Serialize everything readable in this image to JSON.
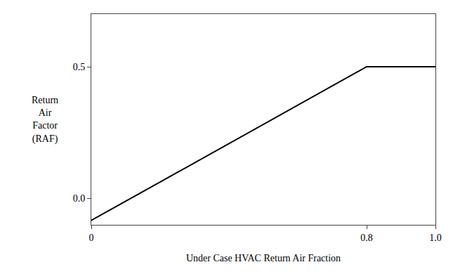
{
  "chart_data": {
    "type": "line",
    "x": [
      0.0,
      0.8,
      1.0
    ],
    "values": [
      -0.0833333,
      0.5,
      0.5
    ],
    "color": "#000000",
    "xlabel": "Under Case HVAC Return Air Fraction",
    "ylabel": "Return\nAir\nFactor\n(RAF)",
    "xlim": [
      0.0,
      1.0
    ],
    "ylim": [
      -0.1,
      0.7
    ],
    "xticks": [
      0,
      0.8,
      {
        "value": 1.0,
        "label": "1.0"
      }
    ],
    "yticks": [
      {
        "value": 0.0,
        "label": "0.0"
      },
      0.5
    ],
    "grid": false
  }
}
